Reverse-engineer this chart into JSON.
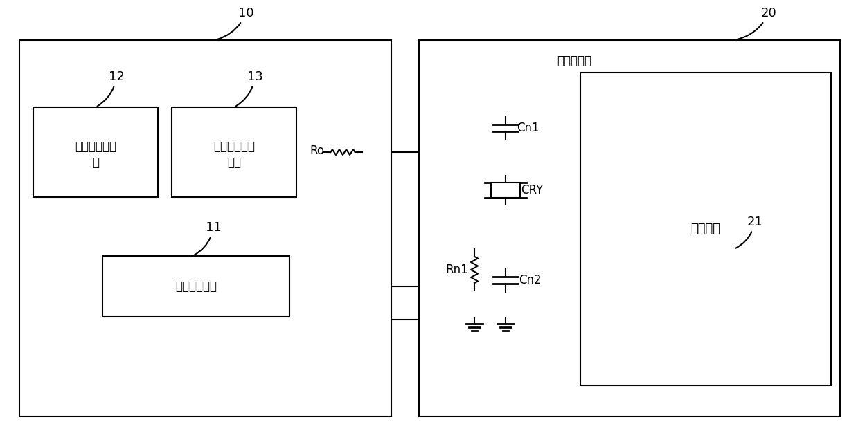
{
  "fig_width": 12.39,
  "fig_height": 6.26,
  "bg_color": "#ffffff",
  "line_color": "#000000",
  "lw": 1.5,
  "label_10": "10",
  "label_20": "20",
  "label_11": "11",
  "label_12": "12",
  "label_13": "13",
  "label_21": "21",
  "text_accel_comp_l1": "加速度补偿模",
  "text_accel_comp_l2": "块",
  "text_amp_phase_l1": "幅度相位补偿",
  "text_amp_phase_l2": "模块",
  "text_accel_sensor": "加速度传感器",
  "text_crystal_osc": "晶体振荡器",
  "text_osc_circuit": "振荡电路",
  "text_Ro": "Ro",
  "text_Cn1": "Cn1",
  "text_CRY": "CRY",
  "text_Rn1": "Rn1",
  "text_Cn2": "Cn2",
  "fontsize_main": 12,
  "fontsize_label": 13
}
